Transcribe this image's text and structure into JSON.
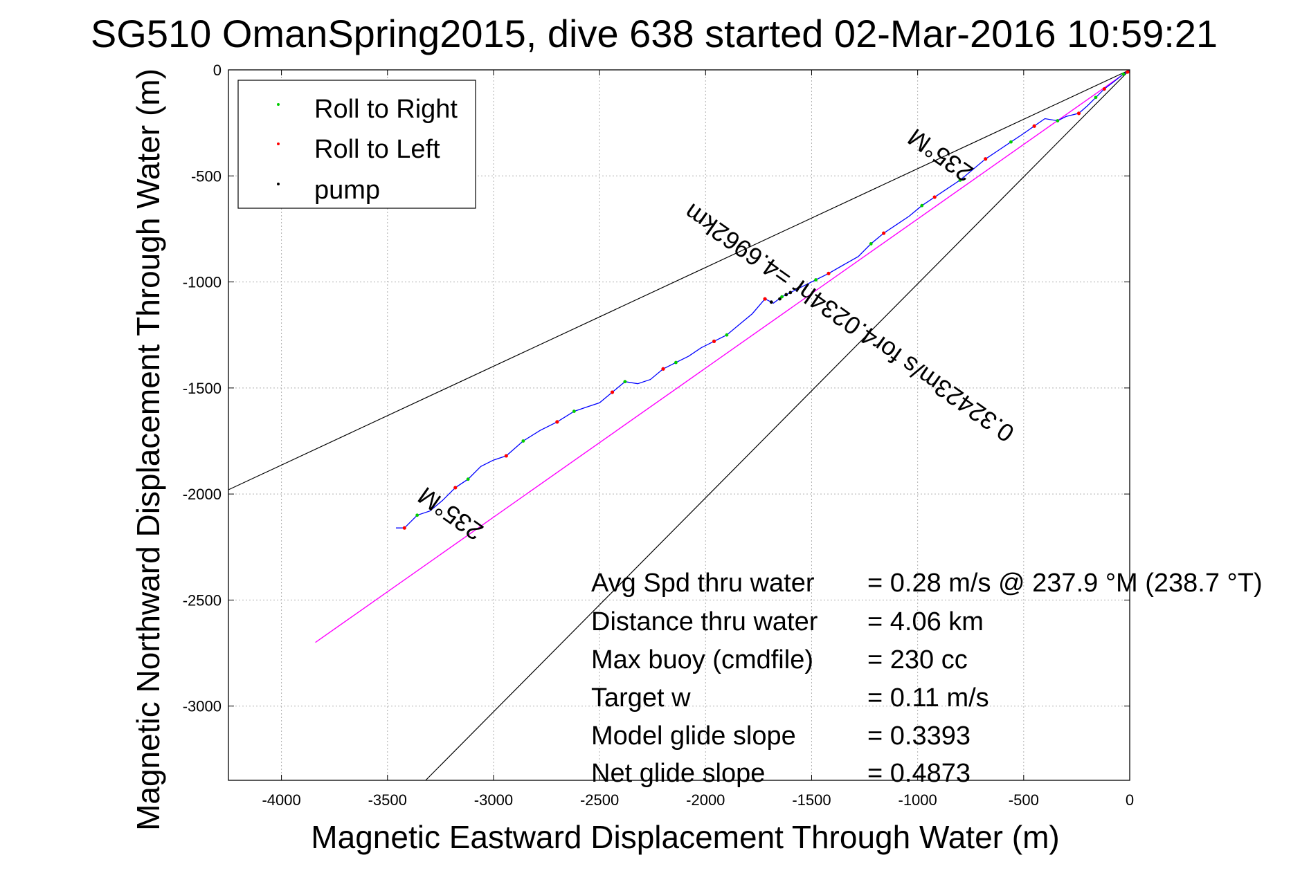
{
  "chart_data": {
    "type": "line",
    "title": "SG510 OmanSpring2015, dive 638 started 02-Mar-2016 10:59:21",
    "xlabel": "Magnetic Eastward Displacement Through Water (m)",
    "ylabel": "Magnetic Northward Displacement Through Water (m)",
    "xlim": [
      -4250,
      0
    ],
    "ylim": [
      -3350,
      0
    ],
    "xticks": [
      -4000,
      -3500,
      -3000,
      -2500,
      -2000,
      -1500,
      -1000,
      -500,
      0
    ],
    "yticks": [
      0,
      -500,
      -1000,
      -1500,
      -2000,
      -2500,
      -3000
    ],
    "grid": true,
    "legend_position": "top-left",
    "legend": [
      {
        "label": "Roll to Right",
        "color": "#00cc00"
      },
      {
        "label": "Roll to Left",
        "color": "#ff0000"
      },
      {
        "label": "pump",
        "color": "#000000"
      }
    ],
    "track_color": "#0000ff",
    "track": [
      [
        0,
        0
      ],
      [
        -30,
        -20
      ],
      [
        -80,
        -60
      ],
      [
        -120,
        -90
      ],
      [
        -160,
        -130
      ],
      [
        -200,
        -170
      ],
      [
        -240,
        -205
      ],
      [
        -300,
        -220
      ],
      [
        -340,
        -240
      ],
      [
        -400,
        -230
      ],
      [
        -450,
        -265
      ],
      [
        -500,
        -300
      ],
      [
        -560,
        -340
      ],
      [
        -620,
        -380
      ],
      [
        -680,
        -420
      ],
      [
        -740,
        -470
      ],
      [
        -800,
        -520
      ],
      [
        -860,
        -560
      ],
      [
        -920,
        -600
      ],
      [
        -980,
        -640
      ],
      [
        -1040,
        -690
      ],
      [
        -1100,
        -730
      ],
      [
        -1160,
        -770
      ],
      [
        -1220,
        -820
      ],
      [
        -1280,
        -880
      ],
      [
        -1350,
        -920
      ],
      [
        -1420,
        -960
      ],
      [
        -1480,
        -990
      ],
      [
        -1540,
        -1020
      ],
      [
        -1600,
        -1050
      ],
      [
        -1640,
        -1070
      ],
      [
        -1680,
        -1100
      ],
      [
        -1720,
        -1080
      ],
      [
        -1780,
        -1150
      ],
      [
        -1840,
        -1200
      ],
      [
        -1900,
        -1250
      ],
      [
        -1960,
        -1280
      ],
      [
        -2020,
        -1310
      ],
      [
        -2080,
        -1350
      ],
      [
        -2140,
        -1380
      ],
      [
        -2200,
        -1410
      ],
      [
        -2260,
        -1460
      ],
      [
        -2320,
        -1480
      ],
      [
        -2380,
        -1470
      ],
      [
        -2440,
        -1520
      ],
      [
        -2500,
        -1570
      ],
      [
        -2560,
        -1590
      ],
      [
        -2620,
        -1610
      ],
      [
        -2700,
        -1660
      ],
      [
        -2780,
        -1700
      ],
      [
        -2860,
        -1750
      ],
      [
        -2940,
        -1820
      ],
      [
        -3000,
        -1840
      ],
      [
        -3060,
        -1870
      ],
      [
        -3120,
        -1930
      ],
      [
        -3180,
        -1970
      ],
      [
        -3240,
        -2030
      ],
      [
        -3300,
        -2080
      ],
      [
        -3360,
        -2100
      ],
      [
        -3420,
        -2160
      ],
      [
        -3460,
        -2160
      ]
    ],
    "roll_right_points": [
      [
        -30,
        -20
      ],
      [
        -160,
        -130
      ],
      [
        -340,
        -240
      ],
      [
        -560,
        -340
      ],
      [
        -800,
        -520
      ],
      [
        -980,
        -640
      ],
      [
        -1220,
        -820
      ],
      [
        -1480,
        -990
      ],
      [
        -1640,
        -1070
      ],
      [
        -1900,
        -1250
      ],
      [
        -2140,
        -1380
      ],
      [
        -2380,
        -1470
      ],
      [
        -2620,
        -1610
      ],
      [
        -2860,
        -1750
      ],
      [
        -3120,
        -1930
      ],
      [
        -3360,
        -2100
      ]
    ],
    "roll_left_points": [
      [
        -10,
        -10
      ],
      [
        -120,
        -90
      ],
      [
        -240,
        -205
      ],
      [
        -450,
        -265
      ],
      [
        -680,
        -420
      ],
      [
        -920,
        -600
      ],
      [
        -1160,
        -770
      ],
      [
        -1420,
        -960
      ],
      [
        -1720,
        -1080
      ],
      [
        -1960,
        -1280
      ],
      [
        -2200,
        -1410
      ],
      [
        -2440,
        -1520
      ],
      [
        -2700,
        -1660
      ],
      [
        -2940,
        -1820
      ],
      [
        -3180,
        -1970
      ],
      [
        -3420,
        -2160
      ]
    ],
    "pump_points": [
      [
        -1600,
        -1050
      ],
      [
        -1620,
        -1060
      ],
      [
        -1650,
        -1080
      ],
      [
        -1690,
        -1095
      ]
    ],
    "magenta_line": {
      "color": "#ff00ff",
      "points": [
        [
          0,
          0
        ],
        [
          -3840,
          -2700
        ]
      ]
    },
    "bound_lines": [
      {
        "points": [
          [
            0,
            0
          ],
          [
            -4250,
            -1980
          ]
        ],
        "color": "#000000"
      },
      {
        "points": [
          [
            0,
            0
          ],
          [
            -3320,
            -3350
          ]
        ],
        "color": "#000000"
      }
    ],
    "annotations": [
      {
        "text": "235°M",
        "at": [
          -3180,
          -2060
        ],
        "angle": 35,
        "upside_down": true
      },
      {
        "text": "235°M",
        "at": [
          -870,
          -370
        ],
        "angle": 35,
        "upside_down": true
      },
      {
        "text": "0.32423m/s for4.0234hr =4.6962km",
        "at": [
          -1300,
          -1160
        ],
        "angle": 35,
        "upside_down": true
      }
    ],
    "stats": [
      {
        "label": "Avg Spd thru water",
        "value": "=  0.28 m/s @ 237.9 °M (238.7 °T)"
      },
      {
        "label": "Distance thru water",
        "value": "=  4.06 km"
      },
      {
        "label": "Max buoy (cmdfile)",
        "value": "= 230 cc"
      },
      {
        "label": "Target w",
        "value": "= 0.11 m/s"
      },
      {
        "label": "Model glide slope",
        "value": "= 0.3393"
      },
      {
        "label": "Net glide slope",
        "value": "= 0.4873"
      }
    ]
  }
}
